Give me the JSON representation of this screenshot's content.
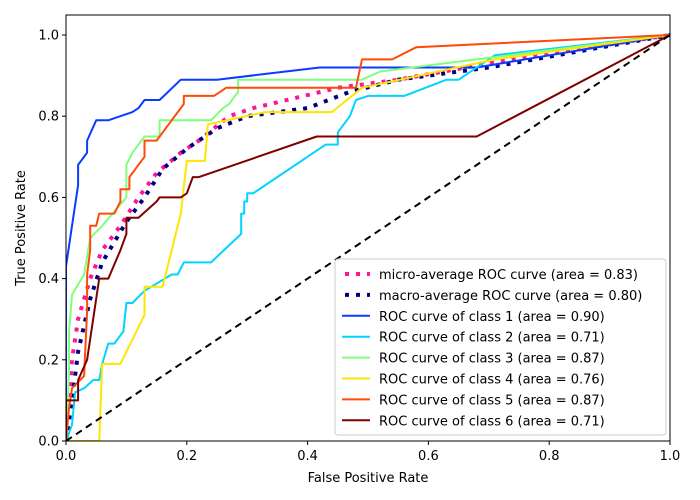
{
  "chart_data": {
    "type": "line",
    "title": "",
    "xlabel": "False Positive Rate",
    "ylabel": "True Positive Rate",
    "xlim": [
      0.0,
      1.0
    ],
    "ylim": [
      0.0,
      1.05
    ],
    "xticks": [
      "0.0",
      "0.2",
      "0.4",
      "0.6",
      "0.8",
      "1.0"
    ],
    "yticks": [
      "0.0",
      "0.2",
      "0.4",
      "0.6",
      "0.8",
      "1.0"
    ],
    "xtick_values": [
      0,
      0.2,
      0.4,
      0.6,
      0.8,
      1.0
    ],
    "ytick_values": [
      0,
      0.2,
      0.4,
      0.6,
      0.8,
      1.0
    ],
    "grid": false,
    "legend_position": "lower-right",
    "series": [
      {
        "name": "micro-average ROC curve (area = 0.83)",
        "color": "#ff1493",
        "style": "dotted",
        "auc": 0.83,
        "x": [
          0,
          0.005,
          0.01,
          0.02,
          0.04,
          0.06,
          0.09,
          0.12,
          0.15,
          0.19,
          0.22,
          0.27,
          0.31,
          0.45,
          0.55,
          0.7,
          1.0
        ],
        "y": [
          0,
          0.1,
          0.2,
          0.3,
          0.4,
          0.47,
          0.53,
          0.6,
          0.66,
          0.71,
          0.74,
          0.8,
          0.82,
          0.87,
          0.89,
          0.93,
          1.0
        ]
      },
      {
        "name": "macro-average ROC curve (area = 0.80)",
        "color": "#000080",
        "style": "dotted",
        "auc": 0.8,
        "x": [
          0,
          0.01,
          0.02,
          0.04,
          0.06,
          0.1,
          0.13,
          0.16,
          0.2,
          0.25,
          0.3,
          0.4,
          0.47,
          0.55,
          0.7,
          1.0
        ],
        "y": [
          0,
          0.1,
          0.22,
          0.35,
          0.44,
          0.54,
          0.6,
          0.67,
          0.72,
          0.77,
          0.8,
          0.82,
          0.86,
          0.89,
          0.92,
          1.0
        ]
      },
      {
        "name": "ROC curve of class 1 (area = 0.90)",
        "color": "#0a3cff",
        "style": "solid",
        "auc": 0.9,
        "x": [
          0,
          0,
          0.01,
          0.02,
          0.02,
          0.035,
          0.035,
          0.05,
          0.07,
          0.11,
          0.12,
          0.13,
          0.155,
          0.19,
          0.25,
          0.42,
          0.68,
          1.0
        ],
        "y": [
          0,
          0.43,
          0.53,
          0.63,
          0.68,
          0.71,
          0.74,
          0.79,
          0.79,
          0.81,
          0.82,
          0.84,
          0.84,
          0.89,
          0.89,
          0.92,
          0.92,
          1.0
        ]
      },
      {
        "name": "ROC curve of class 2 (area = 0.71)",
        "color": "#00d4ff",
        "style": "solid",
        "auc": 0.71,
        "x": [
          0,
          0.01,
          0.015,
          0.03,
          0.045,
          0.055,
          0.06,
          0.07,
          0.08,
          0.095,
          0.1,
          0.11,
          0.13,
          0.175,
          0.185,
          0.195,
          0.24,
          0.29,
          0.29,
          0.295,
          0.295,
          0.3,
          0.3,
          0.31,
          0.43,
          0.45,
          0.45,
          0.46,
          0.47,
          0.48,
          0.5,
          0.56,
          0.63,
          0.65,
          0.71,
          1.0
        ],
        "y": [
          0,
          0.04,
          0.12,
          0.13,
          0.15,
          0.15,
          0.19,
          0.24,
          0.24,
          0.27,
          0.34,
          0.34,
          0.37,
          0.41,
          0.41,
          0.44,
          0.44,
          0.51,
          0.56,
          0.56,
          0.59,
          0.59,
          0.61,
          0.61,
          0.73,
          0.73,
          0.76,
          0.78,
          0.8,
          0.84,
          0.85,
          0.85,
          0.89,
          0.89,
          0.95,
          1.0
        ]
      },
      {
        "name": "ROC curve of class 3 (area = 0.87)",
        "color": "#7fff7a",
        "style": "solid",
        "auc": 0.87,
        "x": [
          0,
          0.005,
          0.005,
          0.01,
          0.03,
          0.04,
          0.06,
          0.1,
          0.1,
          0.11,
          0.13,
          0.155,
          0.155,
          0.24,
          0.26,
          0.27,
          0.285,
          0.285,
          0.49,
          0.52,
          1.0
        ],
        "y": [
          0,
          0.17,
          0.27,
          0.36,
          0.41,
          0.5,
          0.53,
          0.6,
          0.68,
          0.71,
          0.75,
          0.75,
          0.79,
          0.79,
          0.82,
          0.83,
          0.86,
          0.89,
          0.89,
          0.91,
          1.0
        ]
      },
      {
        "name": "ROC curve of class 4 (area = 0.76)",
        "color": "#ffe500",
        "style": "solid",
        "auc": 0.76,
        "x": [
          0,
          0.055,
          0.06,
          0.09,
          0.13,
          0.13,
          0.16,
          0.19,
          0.2,
          0.23,
          0.235,
          0.33,
          0.44,
          0.49,
          0.71,
          1.0
        ],
        "y": [
          0,
          0,
          0.19,
          0.19,
          0.31,
          0.38,
          0.38,
          0.56,
          0.69,
          0.69,
          0.78,
          0.81,
          0.81,
          0.87,
          0.94,
          1.0
        ]
      },
      {
        "name": "ROC curve of class 5 (area = 0.87)",
        "color": "#ff4a0a",
        "style": "solid",
        "auc": 0.87,
        "x": [
          0,
          0.005,
          0.01,
          0.03,
          0.035,
          0.035,
          0.04,
          0.04,
          0.05,
          0.055,
          0.08,
          0.09,
          0.09,
          0.105,
          0.105,
          0.13,
          0.13,
          0.15,
          0.17,
          0.195,
          0.195,
          0.245,
          0.265,
          0.48,
          0.49,
          0.54,
          0.58,
          1.0
        ],
        "y": [
          0,
          0.08,
          0.13,
          0.16,
          0.32,
          0.41,
          0.47,
          0.53,
          0.53,
          0.56,
          0.56,
          0.59,
          0.62,
          0.62,
          0.65,
          0.7,
          0.74,
          0.74,
          0.78,
          0.83,
          0.85,
          0.85,
          0.87,
          0.87,
          0.94,
          0.94,
          0.97,
          1.0
        ]
      },
      {
        "name": "ROC curve of class 6 (area = 0.71)",
        "color": "#800000",
        "style": "solid",
        "auc": 0.71,
        "x": [
          0,
          0,
          0.02,
          0.02,
          0.035,
          0.055,
          0.07,
          0.09,
          0.1,
          0.1,
          0.12,
          0.15,
          0.155,
          0.19,
          0.2,
          0.21,
          0.22,
          0.415,
          0.68,
          1.0
        ],
        "y": [
          0,
          0.1,
          0.1,
          0.15,
          0.2,
          0.4,
          0.4,
          0.47,
          0.51,
          0.55,
          0.55,
          0.59,
          0.6,
          0.6,
          0.61,
          0.65,
          0.65,
          0.75,
          0.75,
          1.0
        ]
      }
    ],
    "reference_line": {
      "name": "chance",
      "color": "#000000",
      "style": "dashed",
      "x": [
        0,
        1
      ],
      "y": [
        0,
        1
      ]
    }
  }
}
